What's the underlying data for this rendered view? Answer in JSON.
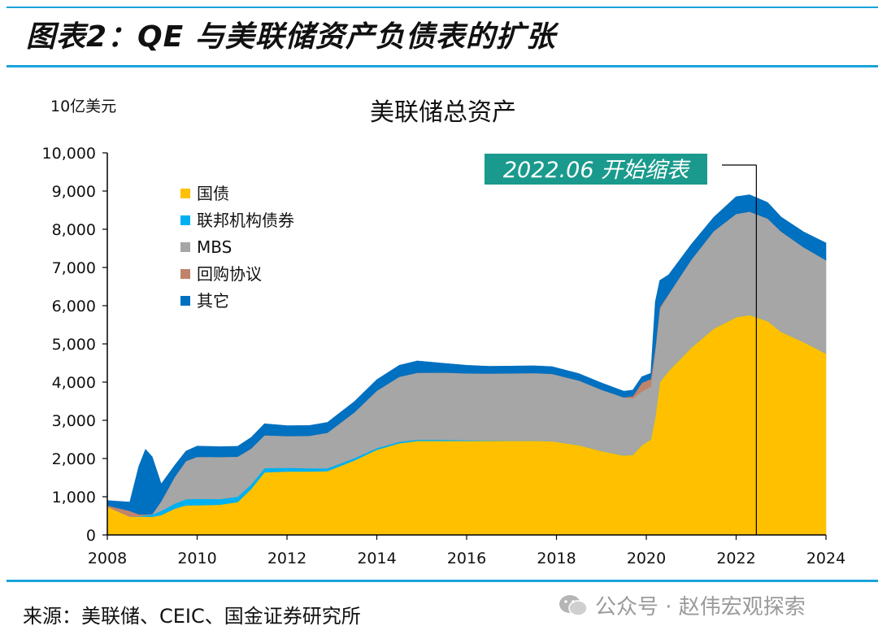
{
  "header": {
    "figure_title": "图表2：QE 与美联储资产负债表的扩张"
  },
  "footer": {
    "source": "来源：美联储、CEIC、国金证券研究所",
    "watermark": "公众号 · 赵伟宏观探索",
    "watermark_icon": "wechat-icon"
  },
  "chart_data": {
    "type": "area",
    "stacked": true,
    "title": "美联储总资产",
    "ylabel": "10亿美元",
    "xlabel": "",
    "xlim": [
      2008,
      2024
    ],
    "ylim": [
      0,
      10000
    ],
    "x_ticks": [
      "2008",
      "2010",
      "2012",
      "2014",
      "2016",
      "2018",
      "2020",
      "2022",
      "2024"
    ],
    "y_ticks": [
      "0",
      "1,000",
      "2,000",
      "3,000",
      "4,000",
      "5,000",
      "6,000",
      "7,000",
      "8,000",
      "9,000",
      "10,000"
    ],
    "legend_position": "top-left",
    "grid": false,
    "x": [
      2008.0,
      2008.5,
      2008.7,
      2008.85,
      2009.0,
      2009.2,
      2009.5,
      2009.75,
      2010.0,
      2010.5,
      2010.9,
      2011.2,
      2011.5,
      2012.0,
      2012.5,
      2012.9,
      2013.5,
      2014.0,
      2014.5,
      2014.9,
      2015.5,
      2016.0,
      2016.5,
      2017.0,
      2017.5,
      2017.9,
      2018.5,
      2019.0,
      2019.5,
      2019.7,
      2019.9,
      2020.1,
      2020.2,
      2020.3,
      2020.5,
      2021.0,
      2021.5,
      2022.0,
      2022.3,
      2022.7,
      2023.0,
      2023.5,
      2024.0
    ],
    "series": [
      {
        "name": "国债",
        "color": "#ffc000",
        "values": [
          740,
          480,
          480,
          480,
          475,
          520,
          690,
          775,
          777,
          790,
          860,
          1200,
          1640,
          1660,
          1660,
          1670,
          1950,
          2230,
          2400,
          2460,
          2461,
          2461,
          2464,
          2465,
          2465,
          2455,
          2350,
          2200,
          2080,
          2100,
          2350,
          2500,
          3100,
          4000,
          4300,
          4900,
          5400,
          5700,
          5760,
          5600,
          5320,
          5050,
          4750
        ]
      },
      {
        "name": "联邦机构债券",
        "color": "#00b0f0",
        "values": [
          0,
          0,
          10,
          40,
          60,
          110,
          130,
          160,
          170,
          150,
          140,
          120,
          110,
          100,
          85,
          75,
          60,
          45,
          40,
          35,
          30,
          20,
          10,
          5,
          3,
          2,
          2,
          2,
          2,
          2,
          2,
          2,
          2,
          2,
          2,
          2,
          2,
          2,
          2,
          2,
          2,
          2,
          2
        ]
      },
      {
        "name": "MBS",
        "color": "#a6a6a6",
        "values": [
          0,
          0,
          0,
          0,
          0,
          250,
          700,
          1000,
          1100,
          1100,
          1050,
          940,
          860,
          830,
          850,
          930,
          1200,
          1500,
          1700,
          1750,
          1760,
          1750,
          1750,
          1760,
          1770,
          1760,
          1690,
          1600,
          1520,
          1470,
          1400,
          1380,
          1700,
          1900,
          2000,
          2300,
          2550,
          2700,
          2700,
          2680,
          2620,
          2480,
          2440
        ]
      },
      {
        "name": "回购协议",
        "color": "#c0846a",
        "values": [
          30,
          150,
          50,
          20,
          10,
          5,
          0,
          0,
          0,
          0,
          0,
          0,
          0,
          0,
          0,
          0,
          0,
          0,
          0,
          0,
          0,
          0,
          0,
          0,
          0,
          0,
          0,
          0,
          0,
          60,
          230,
          200,
          100,
          60,
          10,
          1,
          1,
          1,
          1,
          1,
          1,
          1,
          1
        ]
      },
      {
        "name": "其它",
        "color": "#0070c0",
        "values": [
          130,
          230,
          1250,
          1700,
          1500,
          450,
          300,
          260,
          280,
          270,
          270,
          290,
          300,
          270,
          270,
          270,
          280,
          290,
          300,
          310,
          240,
          210,
          190,
          190,
          190,
          190,
          180,
          180,
          160,
          160,
          160,
          150,
          1200,
          700,
          500,
          400,
          360,
          450,
          440,
          420,
          380,
          400,
          450
        ]
      }
    ],
    "annotation": {
      "text": "2022.06 开始缩表",
      "x": 2022.45
    }
  }
}
